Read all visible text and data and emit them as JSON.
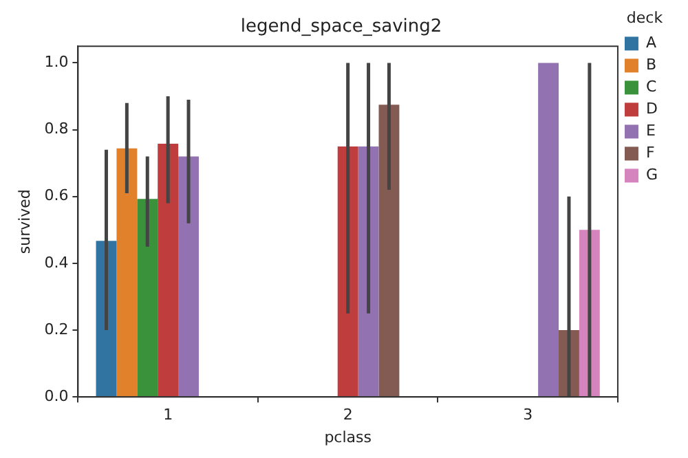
{
  "chart_data": {
    "type": "bar",
    "title": "legend_space_saving2",
    "xlabel": "pclass",
    "ylabel": "survived",
    "legend_title": "deck",
    "legend": "top right",
    "grid": false,
    "categories": [
      "1",
      "2",
      "3"
    ],
    "series": [
      {
        "name": "A",
        "color": "#3274a1",
        "values": [
          0.467,
          null,
          null
        ],
        "errors": [
          [
            0.2,
            0.74
          ],
          null,
          null
        ]
      },
      {
        "name": "B",
        "color": "#e1812c",
        "values": [
          0.744,
          null,
          null
        ],
        "errors": [
          [
            0.61,
            0.88
          ],
          null,
          null
        ]
      },
      {
        "name": "C",
        "color": "#3a923a",
        "values": [
          0.593,
          null,
          null
        ],
        "errors": [
          [
            0.45,
            0.72
          ],
          null,
          null
        ]
      },
      {
        "name": "D",
        "color": "#c03d3e",
        "values": [
          0.758,
          0.75,
          null
        ],
        "errors": [
          [
            0.58,
            0.9
          ],
          [
            0.25,
            1.0
          ],
          null
        ]
      },
      {
        "name": "E",
        "color": "#9372b2",
        "values": [
          0.72,
          0.75,
          1.0
        ],
        "errors": [
          [
            0.52,
            0.89
          ],
          [
            0.25,
            1.0
          ],
          null
        ]
      },
      {
        "name": "F",
        "color": "#845b53",
        "values": [
          null,
          0.875,
          0.2
        ],
        "errors": [
          null,
          [
            0.62,
            1.0
          ],
          [
            0,
            0.6
          ]
        ]
      },
      {
        "name": "G",
        "color": "#d684bd",
        "values": [
          null,
          null,
          0.5
        ],
        "errors": [
          null,
          null,
          [
            0,
            1.0
          ]
        ]
      }
    ],
    "ylim": [
      0,
      1.05
    ],
    "yticks": [
      {
        "value": 0,
        "label": "0.0"
      },
      {
        "value": 0.2,
        "label": "0.2"
      },
      {
        "value": 0.4,
        "label": "0.4"
      },
      {
        "value": 0.6,
        "label": "0.6"
      },
      {
        "value": 0.8,
        "label": "0.8"
      },
      {
        "value": 1.0,
        "label": "1.0"
      }
    ]
  }
}
